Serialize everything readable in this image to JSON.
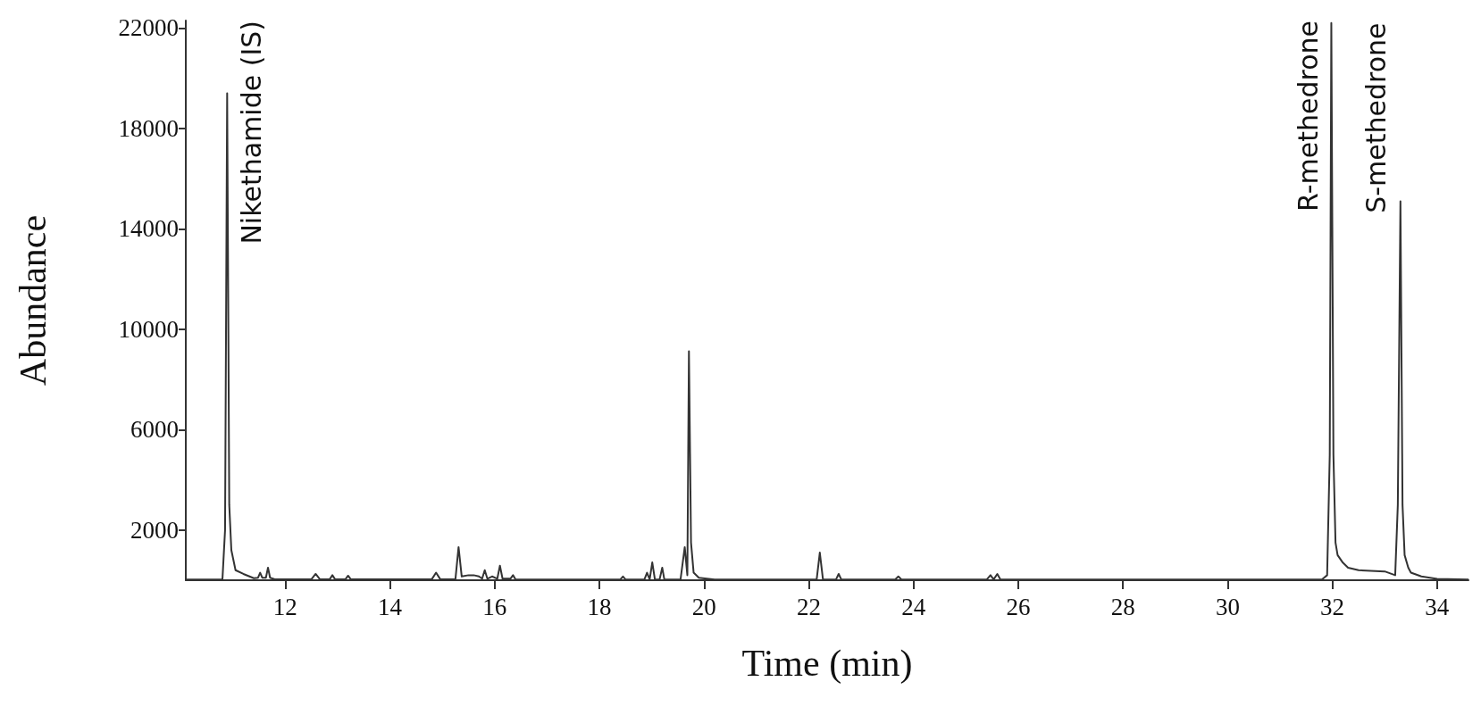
{
  "chart_data": {
    "type": "line",
    "xlabel": "Time (min)",
    "ylabel": "Abundance",
    "xlim": [
      10.1,
      34.6
    ],
    "xticks": [
      12,
      14,
      16,
      18,
      20,
      22,
      24,
      26,
      28,
      30,
      32,
      34
    ],
    "ylim": [
      0,
      22300
    ],
    "yticks": [
      2000,
      6000,
      10000,
      14000,
      18000,
      22000
    ],
    "grid": false,
    "marker": "none",
    "line_style": "solid",
    "annotations": [
      {
        "text": "Nikethamide (IS)",
        "x": 10.89,
        "y": 19400
      },
      {
        "text": "R-methedrone",
        "x": 32.0,
        "y": 22200
      },
      {
        "text": "S-methedrone",
        "x": 33.3,
        "y": 15100
      }
    ],
    "series": [
      {
        "color": "#333333",
        "x": [
          10.1,
          10.8,
          10.85,
          10.89,
          10.93,
          10.97,
          11.05,
          11.2,
          11.4,
          11.48,
          11.52,
          11.56,
          11.63,
          11.67,
          11.71,
          11.8,
          12.5,
          12.58,
          12.66,
          12.85,
          12.9,
          12.95,
          13.15,
          13.2,
          13.25,
          14.0,
          14.8,
          14.88,
          14.96,
          15.25,
          15.31,
          15.37,
          15.5,
          15.6,
          15.7,
          15.76,
          15.81,
          15.86,
          15.95,
          16.05,
          16.1,
          16.15,
          16.3,
          16.35,
          16.4,
          18.4,
          18.45,
          18.5,
          18.86,
          18.91,
          18.96,
          19.01,
          19.06,
          19.15,
          19.2,
          19.24,
          19.28,
          19.55,
          19.63,
          19.68,
          19.71,
          19.75,
          19.8,
          19.9,
          20.2,
          22.15,
          22.21,
          22.27,
          22.52,
          22.57,
          22.62,
          23.65,
          23.71,
          23.77,
          25.4,
          25.47,
          25.53,
          25.6,
          25.66,
          31.8,
          31.9,
          31.95,
          31.98,
          32.02,
          32.06,
          32.1,
          32.2,
          32.3,
          32.5,
          33.0,
          33.2,
          33.25,
          33.3,
          33.34,
          33.38,
          33.45,
          33.5,
          33.7,
          34.0,
          34.6
        ],
        "values": [
          30,
          30,
          2000,
          19400,
          3000,
          1200,
          400,
          250,
          80,
          100,
          300,
          100,
          100,
          500,
          100,
          40,
          40,
          250,
          40,
          40,
          200,
          40,
          40,
          180,
          40,
          40,
          40,
          300,
          40,
          40,
          1320,
          150,
          200,
          200,
          150,
          60,
          400,
          60,
          150,
          60,
          580,
          60,
          60,
          200,
          30,
          30,
          150,
          30,
          30,
          300,
          30,
          710,
          30,
          30,
          500,
          30,
          30,
          30,
          1320,
          200,
          9120,
          1500,
          300,
          100,
          30,
          30,
          1100,
          30,
          30,
          250,
          30,
          30,
          150,
          30,
          30,
          200,
          30,
          250,
          30,
          30,
          200,
          5000,
          22200,
          5000,
          1500,
          1000,
          700,
          500,
          400,
          350,
          200,
          3000,
          15100,
          3000,
          1000,
          500,
          300,
          150,
          50,
          30
        ]
      }
    ]
  }
}
